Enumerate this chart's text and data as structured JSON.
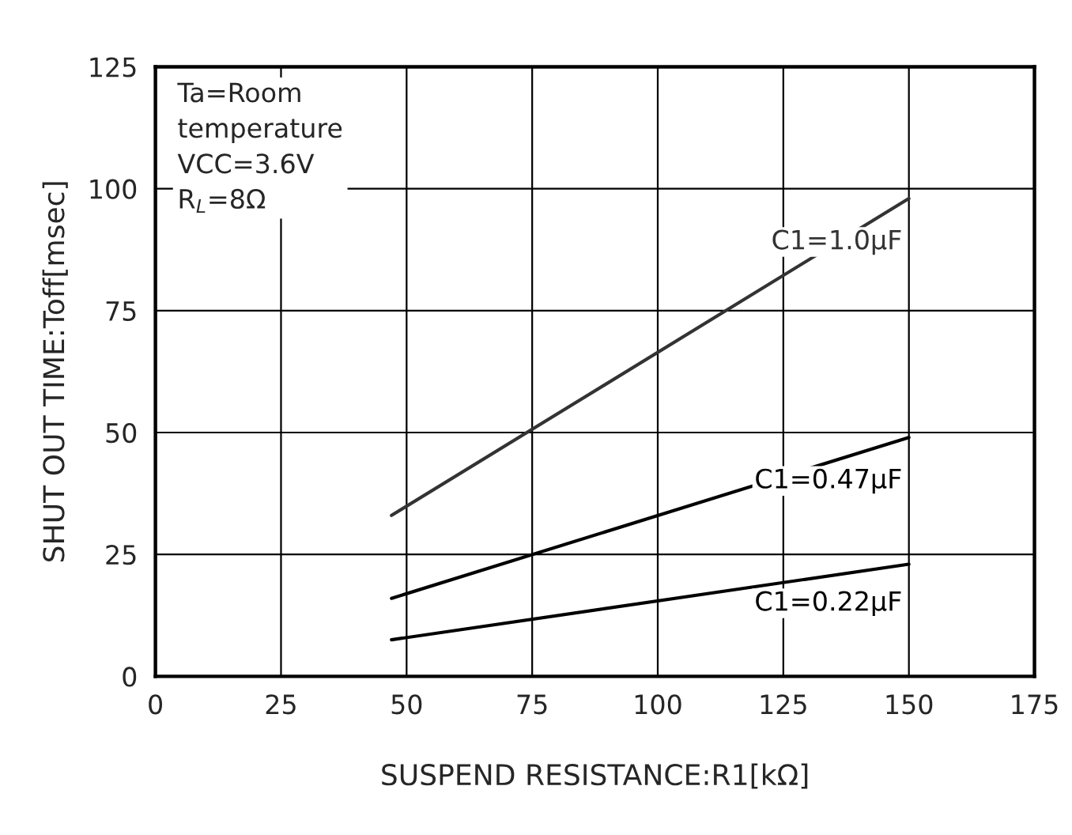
{
  "chart_data": {
    "type": "line",
    "xlabel": "SUSPEND RESISTANCE:R1[kΩ]",
    "ylabel": "SHUT OUT TIME:Toff[msec]",
    "annotations": [
      "Ta=Room\ntemperature\nVCC=3.6V\nR$_{L}$=8Ω"
    ],
    "x": [
      47,
      150
    ],
    "series": [
      {
        "name": "C1=1.0μF",
        "color": "#333333",
        "values": [
          33,
          98
        ]
      },
      {
        "name": "C1=0.47μF",
        "color": "#000000",
        "values": [
          16,
          49
        ]
      },
      {
        "name": "C1=0.22μF",
        "color": "#000000",
        "values": [
          7.5,
          23
        ]
      }
    ],
    "xlim": [
      0,
      175
    ],
    "xticks": [
      0,
      25,
      50,
      75,
      100,
      125,
      150,
      175
    ],
    "ylim": [
      0,
      125
    ],
    "yticks": [
      0,
      25,
      50,
      75,
      100,
      125
    ],
    "grid": true,
    "legend": false,
    "marker": "none",
    "line_style": "solid"
  }
}
